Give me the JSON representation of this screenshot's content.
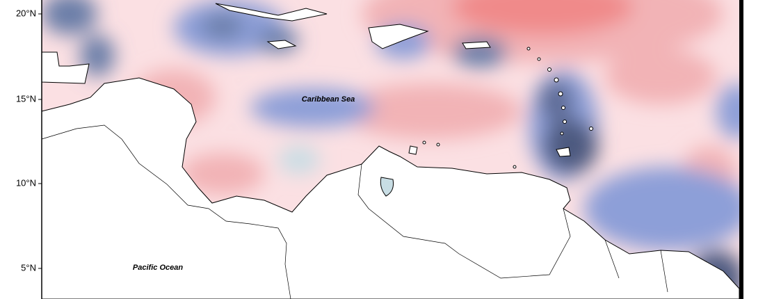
{
  "axis": {
    "labels": [
      "20°N",
      "15°N",
      "10°N",
      "5°N"
    ]
  },
  "annotations": [
    "Caribbean Sea",
    "Pacific Ocean"
  ]
}
